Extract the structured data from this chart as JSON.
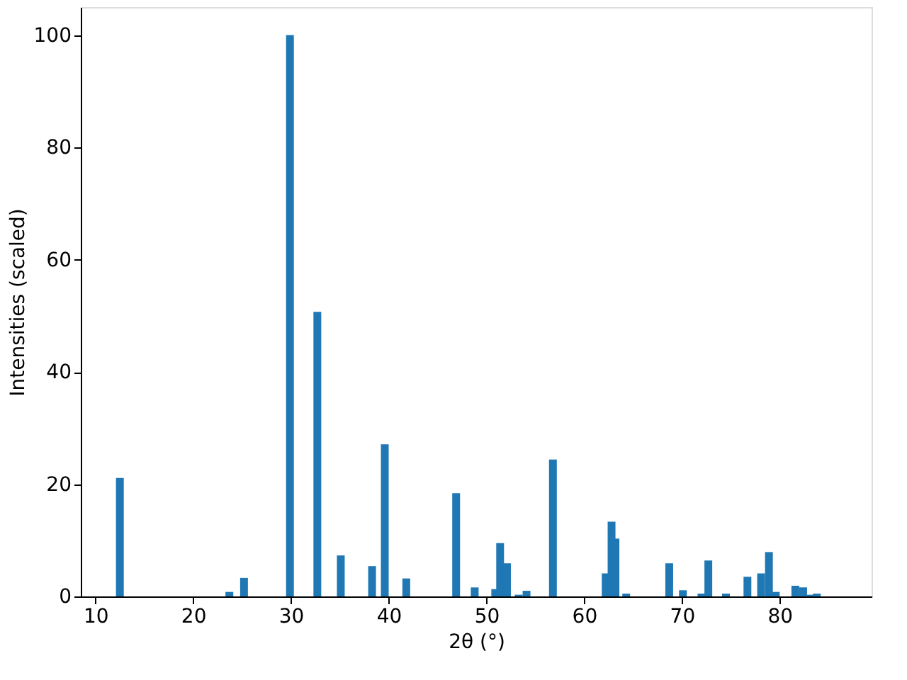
{
  "chart_data": {
    "type": "bar",
    "xlabel": "2θ (°)",
    "ylabel": "Intensities (scaled)",
    "x": [
      12.5,
      23.7,
      25.2,
      29.9,
      32.7,
      35.1,
      38.3,
      39.6,
      41.8,
      46.9,
      48.8,
      50.9,
      51.4,
      52.1,
      53.3,
      54.1,
      56.8,
      62.2,
      62.8,
      63.2,
      64.3,
      68.7,
      70.1,
      72.0,
      72.7,
      74.5,
      76.7,
      78.1,
      78.9,
      79.6,
      81.6,
      82.4,
      83.2,
      83.8
    ],
    "values": [
      21.1,
      0.8,
      3.3,
      100,
      50.7,
      7.3,
      5.4,
      27.1,
      3.2,
      18.4,
      1.6,
      1.3,
      9.5,
      5.9,
      0.3,
      1.0,
      24.4,
      4.1,
      13.3,
      10.3,
      0.5,
      5.9,
      1.1,
      0.5,
      6.4,
      0.5,
      3.5,
      4.1,
      7.9,
      0.8,
      1.9,
      1.6,
      0.3,
      0.5
    ],
    "color": "#1f77b4",
    "xlim": [
      8.5,
      89.4
    ],
    "ylim": [
      0,
      105
    ],
    "xticks": [
      10,
      20,
      30,
      40,
      50,
      60,
      70,
      80
    ],
    "yticks": [
      0,
      20,
      40,
      60,
      80,
      100
    ],
    "grid": false
  }
}
